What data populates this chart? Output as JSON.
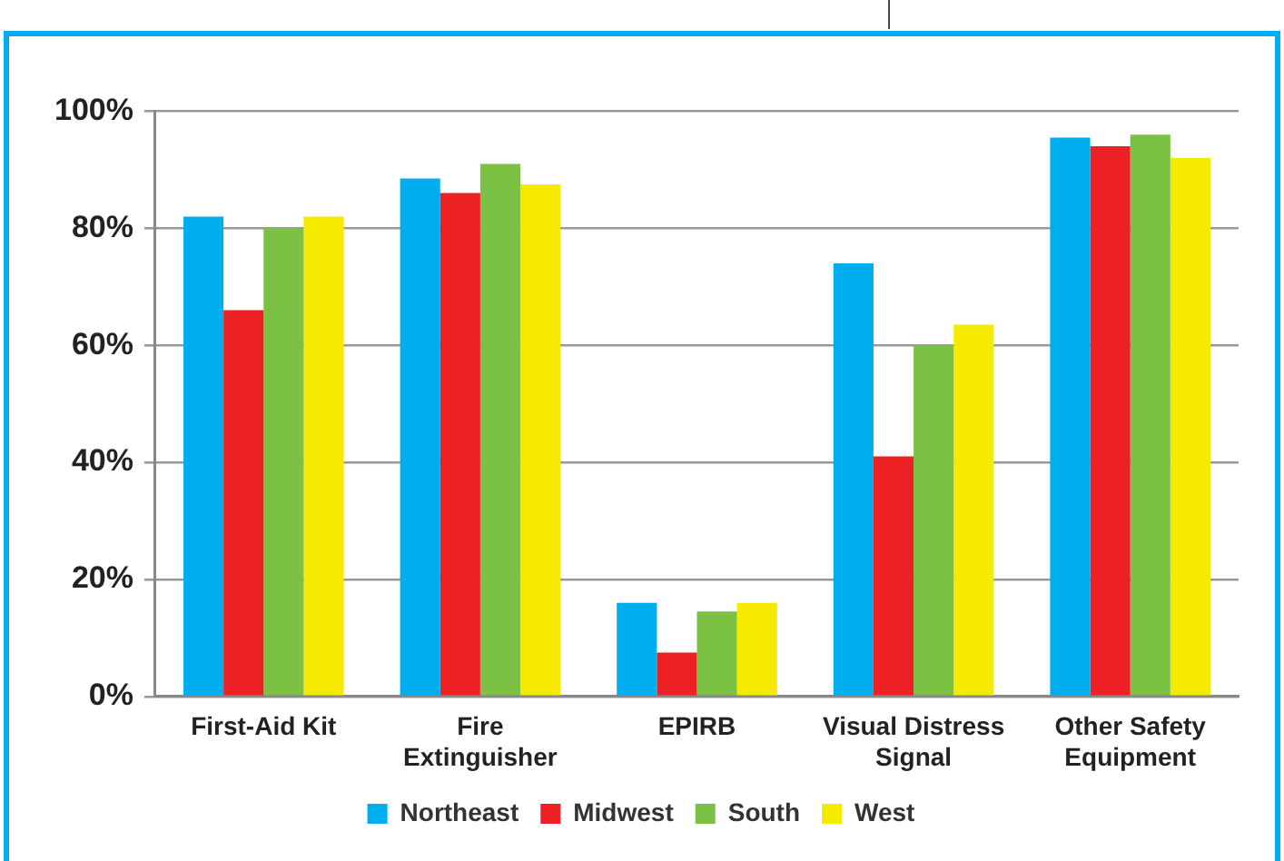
{
  "chart_data": {
    "type": "bar",
    "categories": [
      "First-Aid Kit",
      "Fire\nExtinguisher",
      "EPIRB",
      "Visual Distress\nSignal",
      "Other Safety\nEquipment"
    ],
    "series": [
      {
        "name": "Northeast",
        "color": "#00aeef",
        "values": [
          82,
          88.5,
          16,
          74,
          95.5
        ]
      },
      {
        "name": "Midwest",
        "color": "#ed2024",
        "values": [
          66,
          86,
          7.5,
          41,
          94
        ]
      },
      {
        "name": "South",
        "color": "#7bc143",
        "values": [
          80,
          91,
          14.5,
          60,
          96
        ]
      },
      {
        "name": "West",
        "color": "#f5ea00",
        "values": [
          82,
          87.5,
          16,
          63.5,
          92
        ]
      }
    ],
    "ylim": [
      0,
      100
    ],
    "yticks": [
      {
        "value": 0,
        "label": "0%"
      },
      {
        "value": 20,
        "label": "20%"
      },
      {
        "value": 40,
        "label": "40%"
      },
      {
        "value": 60,
        "label": "60%"
      },
      {
        "value": 80,
        "label": "80%"
      },
      {
        "value": 100,
        "label": "100%"
      }
    ],
    "grid": "y",
    "legend": "bottom"
  }
}
